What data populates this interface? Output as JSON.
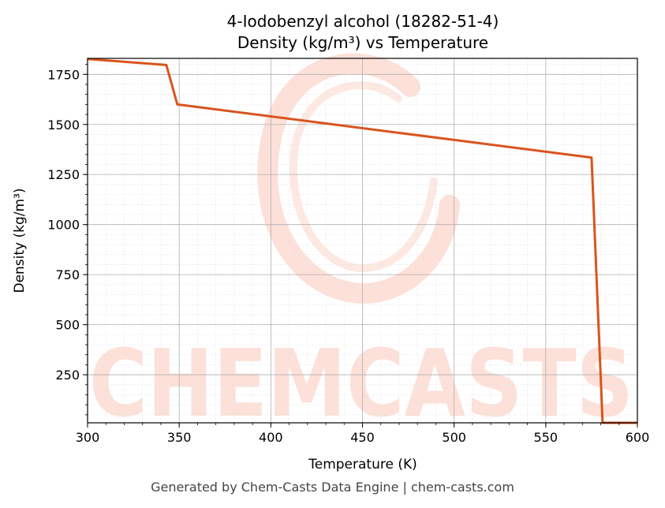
{
  "chart_data": {
    "type": "line",
    "title": "4-Iodobenzyl alcohol (18282-51-4)",
    "subtitle": "Density (kg/m³) vs Temperature",
    "xlabel": "Temperature (K)",
    "ylabel": "Density (kg/m³)",
    "xlim": [
      300,
      600
    ],
    "ylim": [
      10,
      1830
    ],
    "x_ticks": [
      300,
      350,
      400,
      450,
      500,
      550,
      600
    ],
    "y_ticks": [
      250,
      500,
      750,
      1000,
      1250,
      1500,
      1750
    ],
    "grid": true,
    "line_color": "#d9541e",
    "watermark": "CHEMCASTS",
    "series": [
      {
        "x": [
          300,
          343,
          349,
          575,
          581,
          600
        ],
        "y": [
          1827,
          1797,
          1600,
          1335,
          10,
          10
        ]
      }
    ]
  },
  "footer": "Generated by Chem-Casts Data Engine | chem-casts.com"
}
